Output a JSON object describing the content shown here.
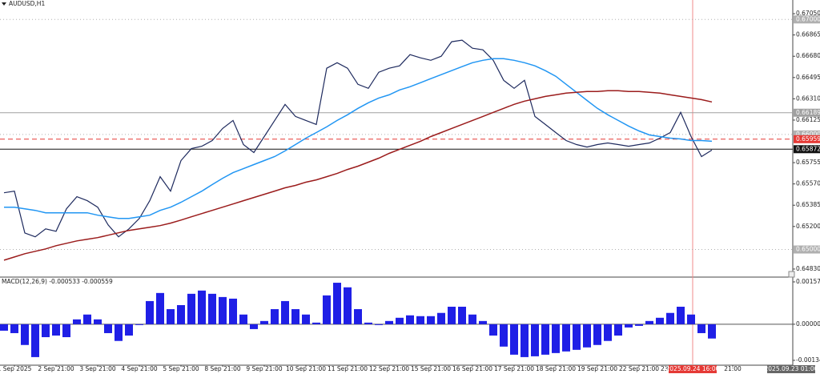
{
  "chart_data": [
    {
      "type": "line",
      "title": "AUDUSD,H1",
      "cursor_time": "2025.09.24 16:00",
      "time_marker": "2025.09.23 01:00",
      "categories": [
        null,
        "1 Sep 2025",
        null,
        null,
        null,
        "2 Sep 21:00",
        null,
        null,
        null,
        "3 Sep 21:00",
        null,
        null,
        null,
        "4 Sep 21:00",
        null,
        null,
        null,
        "5 Sep 21:00",
        null,
        null,
        null,
        "8 Sep 21:00",
        null,
        null,
        null,
        "9 Sep 21:00",
        null,
        null,
        null,
        "10 Sep 21:00",
        null,
        null,
        null,
        "11 Sep 21:00",
        null,
        null,
        null,
        "12 Sep 21:00",
        null,
        null,
        null,
        "15 Sep 21:00",
        null,
        null,
        null,
        "16 Sep 21:00",
        null,
        null,
        null,
        "17 Sep 21:00",
        null,
        null,
        null,
        "18 Sep 21:00",
        null,
        null,
        null,
        "19 Sep 21:00",
        null,
        null,
        null,
        "22 Sep 21:00",
        null,
        null,
        null,
        "23 Sep 21:00",
        null,
        null,
        null,
        null,
        "21:00",
        null
      ],
      "series": [
        {
          "color": "#1e2a5e",
          "values": [
            0.65493,
            0.65507,
            0.65144,
            0.6511,
            0.65179,
            0.65158,
            0.65354,
            0.65459,
            0.65424,
            0.65368,
            0.65214,
            0.6511,
            0.65179,
            0.6527,
            0.65424,
            0.65633,
            0.65507,
            0.65773,
            0.65877,
            0.65898,
            0.65947,
            0.66052,
            0.66122,
            0.65912,
            0.65843,
            0.65982,
            0.66122,
            0.66261,
            0.66157,
            0.66122,
            0.66087,
            0.66576,
            0.66624,
            0.66576,
            0.66436,
            0.66401,
            0.66541,
            0.66576,
            0.66597,
            0.66694,
            0.66666,
            0.66645,
            0.6668,
            0.66806,
            0.6682,
            0.6675,
            0.66736,
            0.66645,
            0.66471,
            0.66401,
            0.66471,
            0.66157,
            0.66087,
            0.66017,
            0.65947,
            0.65912,
            0.65891,
            0.65912,
            0.65926,
            0.65912,
            0.65898,
            0.65912,
            0.65926,
            0.65968,
            0.66017,
            0.66192,
            0.65982,
            0.65808,
            0.65864,
            null,
            null,
            null
          ]
        },
        {
          "color": "#2196f3",
          "values": [
            0.65368,
            0.65368,
            0.65354,
            0.6534,
            0.65319,
            0.65319,
            0.65319,
            0.65319,
            0.65319,
            0.65298,
            0.65284,
            0.6527,
            0.6527,
            0.65284,
            0.65298,
            0.6534,
            0.65368,
            0.6541,
            0.65459,
            0.65507,
            0.65564,
            0.65619,
            0.65668,
            0.65703,
            0.65738,
            0.65773,
            0.65808,
            0.65857,
            0.65912,
            0.65968,
            0.66017,
            0.66066,
            0.66122,
            0.66171,
            0.66227,
            0.66276,
            0.66317,
            0.66345,
            0.66387,
            0.66415,
            0.6645,
            0.66485,
            0.6652,
            0.66555,
            0.6659,
            0.66624,
            0.66645,
            0.66659,
            0.66659,
            0.66645,
            0.66624,
            0.66597,
            0.66555,
            0.66506,
            0.66436,
            0.66366,
            0.66296,
            0.66227,
            0.66171,
            0.66122,
            0.66073,
            0.66031,
            0.65996,
            0.65982,
            0.65968,
            0.65961,
            0.65947,
            0.65947,
            0.65941,
            null,
            null,
            null
          ]
        },
        {
          "color": "#9b1c1c",
          "values": [
            0.64907,
            0.64935,
            0.64963,
            0.64984,
            0.65005,
            0.65033,
            0.65054,
            0.65075,
            0.65089,
            0.65103,
            0.65124,
            0.65145,
            0.65166,
            0.6518,
            0.65194,
            0.65208,
            0.65229,
            0.65256,
            0.65284,
            0.65312,
            0.6534,
            0.65368,
            0.65396,
            0.65424,
            0.65452,
            0.6548,
            0.65508,
            0.65536,
            0.65557,
            0.65585,
            0.65605,
            0.65633,
            0.65661,
            0.65696,
            0.65724,
            0.65759,
            0.65794,
            0.65836,
            0.65871,
            0.65906,
            0.65941,
            0.65982,
            0.66017,
            0.66052,
            0.66087,
            0.66122,
            0.66157,
            0.66192,
            0.66227,
            0.66262,
            0.6629,
            0.6631,
            0.66331,
            0.66345,
            0.66359,
            0.66366,
            0.66373,
            0.66373,
            0.6638,
            0.6638,
            0.66373,
            0.66373,
            0.66366,
            0.66359,
            0.66345,
            0.66331,
            0.66317,
            0.66303,
            0.66283,
            null,
            null,
            null
          ]
        }
      ],
      "ylim": [
        0.64767,
        0.67169
      ],
      "yticks": [
        {
          "value": 0.6705,
          "label": "0.67050"
        },
        {
          "value": 0.66865,
          "label": "0.66865"
        },
        {
          "value": 0.6668,
          "label": "0.66680"
        },
        {
          "value": 0.66495,
          "label": "0.66495"
        },
        {
          "value": 0.6631,
          "label": "0.66310"
        },
        {
          "value": 0.66125,
          "label": "0.66125"
        },
        {
          "value": 0.65755,
          "label": "0.65755"
        },
        {
          "value": 0.6557,
          "label": "0.65570"
        },
        {
          "value": 0.65385,
          "label": "0.65385"
        },
        {
          "value": 0.652,
          "label": "0.65200"
        },
        {
          "value": 0.6483,
          "label": "0.64830"
        }
      ],
      "levels": [
        {
          "value": 0.67,
          "label": "0.67000",
          "color": "#b0b0b0",
          "style": "dotted"
        },
        {
          "value": 0.66189,
          "label": "0.66189",
          "color": "#a0a0a0",
          "style": "solid"
        },
        {
          "value": 0.66,
          "label": "0.66000",
          "color": "#b0b0b0",
          "style": "dotted"
        },
        {
          "value": 0.65959,
          "label": "0.65959",
          "color": "#e53935",
          "style": "dashed"
        },
        {
          "value": 0.65872,
          "label": "0.65872",
          "color": "#111111",
          "style": "solid"
        },
        {
          "value": 0.65,
          "label": "0.65000",
          "color": "#b0b0b0",
          "style": "dotted"
        }
      ]
    },
    {
      "type": "bar",
      "title": "MACD(12,26,9) -0.000533 -0.000559",
      "color": "#1f1fe6",
      "values": [
        -0.00024,
        -0.00033,
        -0.00077,
        -0.00122,
        -0.00048,
        -0.00042,
        -0.00048,
        0.00018,
        0.00036,
        0.00018,
        -0.00033,
        -0.00062,
        -0.00042,
        -3e-05,
        0.00086,
        0.00116,
        0.00056,
        0.00071,
        0.00113,
        0.00125,
        0.00113,
        0.00101,
        0.00095,
        0.00036,
        -0.00018,
        0.00012,
        0.00056,
        0.00086,
        0.00056,
        0.00036,
        6e-05,
        0.00107,
        0.00154,
        0.00137,
        0.00056,
        6e-05,
        -3e-05,
        0.00012,
        0.00024,
        0.00033,
        0.0003,
        0.0003,
        0.00042,
        0.00065,
        0.00065,
        0.00036,
        0.00012,
        -0.00042,
        -0.00083,
        -0.00113,
        -0.00122,
        -0.00119,
        -0.00113,
        -0.00107,
        -0.00101,
        -0.00095,
        -0.00086,
        -0.00077,
        -0.00062,
        -0.00042,
        -0.00012,
        -6e-05,
        0.00012,
        0.00024,
        0.00042,
        0.00065,
        0.00036,
        -0.00033,
        -0.00053,
        null,
        null,
        null
      ],
      "ylim": [
        -0.00152,
        0.00172
      ],
      "yticks": [
        0.001572,
        {
          "value": 0,
          "label": "0.000000"
        },
        -0.00134
      ]
    }
  ]
}
